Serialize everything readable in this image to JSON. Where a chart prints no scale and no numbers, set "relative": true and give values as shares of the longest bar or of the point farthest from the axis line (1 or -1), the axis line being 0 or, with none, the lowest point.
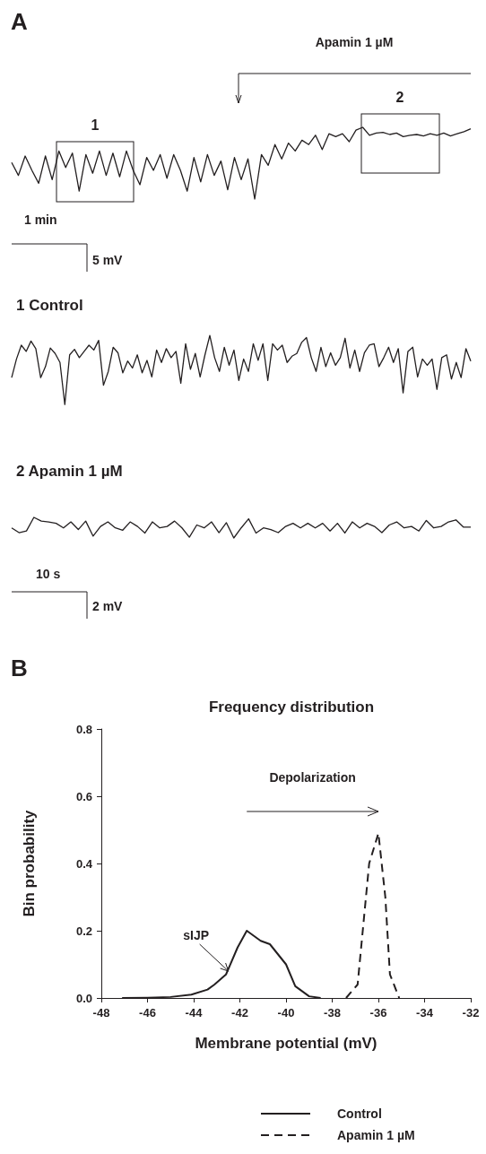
{
  "chart_data": [
    {
      "type": "line",
      "relative": true,
      "color": "#231f20",
      "annotations": [
        "A",
        "Apamin 1 µM",
        "1",
        "2",
        "1 min",
        "5 mV"
      ],
      "categories": [
        null,
        null,
        null,
        null,
        null,
        null,
        null,
        null,
        null,
        null,
        null,
        null,
        null,
        null,
        null,
        null,
        null,
        null,
        null,
        null,
        null,
        null,
        null,
        null,
        null,
        null,
        null,
        null,
        null,
        null,
        null,
        null,
        null,
        null,
        null,
        null,
        null,
        null,
        null,
        null,
        null,
        null,
        null,
        null,
        null,
        null,
        null,
        null,
        null,
        null,
        null,
        null,
        null,
        null,
        null,
        null,
        null,
        null,
        null,
        null,
        null,
        null,
        null,
        null,
        null,
        null,
        null,
        null,
        null
      ],
      "values": [
        0.51,
        0.33,
        0.6,
        0.4,
        0.22,
        0.6,
        0.27,
        0.67,
        0.44,
        0.64,
        0.11,
        0.62,
        0.36,
        0.67,
        0.33,
        0.64,
        0.31,
        0.67,
        0.4,
        0.2,
        0.58,
        0.4,
        0.62,
        0.29,
        0.62,
        0.4,
        0.11,
        0.58,
        0.24,
        0.62,
        0.33,
        0.53,
        0.13,
        0.58,
        0.27,
        0.56,
        0,
        0.62,
        0.47,
        0.76,
        0.56,
        0.78,
        0.67,
        0.82,
        0.76,
        0.89,
        0.69,
        0.91,
        0.87,
        0.91,
        0.8,
        0.96,
        1,
        0.89,
        0.92,
        0.93,
        0.9,
        0.92,
        0.87,
        0.89,
        0.9,
        0.88,
        0.91,
        0.89,
        0.92,
        0.88,
        0.91,
        0.94,
        0.98
      ]
    },
    {
      "type": "line",
      "relative": true,
      "color": "#231f20",
      "title": "1 Control",
      "categories": [
        null,
        null,
        null,
        null,
        null,
        null,
        null,
        null,
        null,
        null,
        null,
        null,
        null,
        null,
        null,
        null,
        null,
        null,
        null,
        null,
        null,
        null,
        null,
        null,
        null,
        null,
        null,
        null,
        null,
        null,
        null,
        null,
        null,
        null,
        null,
        null,
        null,
        null,
        null,
        null,
        null,
        null,
        null,
        null,
        null,
        null,
        null,
        null,
        null,
        null,
        null,
        null,
        null,
        null,
        null,
        null,
        null,
        null,
        null,
        null,
        null,
        null,
        null,
        null,
        null,
        null,
        null,
        null,
        null,
        null,
        null,
        null,
        null,
        null,
        null,
        null,
        null,
        null,
        null,
        null,
        null,
        null,
        null,
        null,
        null,
        null,
        null,
        null,
        null,
        null,
        null,
        null,
        null,
        null,
        null,
        null
      ],
      "values": [
        0.39,
        0.66,
        0.86,
        0.77,
        0.92,
        0.81,
        0.39,
        0.55,
        0.82,
        0.74,
        0.61,
        0,
        0.72,
        0.8,
        0.68,
        0.77,
        0.86,
        0.79,
        0.93,
        0.28,
        0.48,
        0.83,
        0.75,
        0.46,
        0.63,
        0.53,
        0.72,
        0.46,
        0.64,
        0.4,
        0.79,
        0.61,
        0.81,
        0.68,
        0.77,
        0.31,
        0.88,
        0.51,
        0.74,
        0.4,
        0.72,
        1,
        0.68,
        0.48,
        0.83,
        0.57,
        0.79,
        0.35,
        0.66,
        0.48,
        0.88,
        0.64,
        0.88,
        0.35,
        0.88,
        0.79,
        0.86,
        0.61,
        0.7,
        0.74,
        0.9,
        0.97,
        0.68,
        0.48,
        0.83,
        0.55,
        0.75,
        0.57,
        0.68,
        0.96,
        0.53,
        0.79,
        0.48,
        0.75,
        0.86,
        0.88,
        0.55,
        0.68,
        0.83,
        0.61,
        0.81,
        0.17,
        0.77,
        0.83,
        0.4,
        0.66,
        0.57,
        0.66,
        0.22,
        0.68,
        0.72,
        0.37,
        0.61,
        0.39,
        0.81,
        0.63
      ]
    },
    {
      "type": "line",
      "relative": true,
      "color": "#231f20",
      "title": "2 Apamin 1 µM",
      "annotations": [
        "10 s",
        "2 mV"
      ],
      "categories": [
        null,
        null,
        null,
        null,
        null,
        null,
        null,
        null,
        null,
        null,
        null,
        null,
        null,
        null,
        null,
        null,
        null,
        null,
        null,
        null,
        null,
        null,
        null,
        null,
        null,
        null,
        null,
        null,
        null,
        null,
        null,
        null,
        null,
        null,
        null,
        null,
        null,
        null,
        null,
        null,
        null,
        null,
        null,
        null,
        null,
        null,
        null,
        null,
        null,
        null,
        null,
        null,
        null,
        null,
        null,
        null,
        null,
        null,
        null,
        null,
        null,
        null,
        null
      ],
      "values": [
        0.49,
        0.26,
        0.34,
        1,
        0.82,
        0.78,
        0.71,
        0.49,
        0.78,
        0.41,
        0.82,
        0.09,
        0.56,
        0.78,
        0.49,
        0.38,
        0.78,
        0.56,
        0.24,
        0.78,
        0.49,
        0.56,
        0.82,
        0.49,
        0.04,
        0.63,
        0.49,
        0.78,
        0.26,
        0.74,
        0,
        0.49,
        0.93,
        0.24,
        0.49,
        0.41,
        0.26,
        0.56,
        0.71,
        0.49,
        0.71,
        0.49,
        0.71,
        0.34,
        0.71,
        0.24,
        0.78,
        0.49,
        0.71,
        0.56,
        0.26,
        0.63,
        0.78,
        0.49,
        0.56,
        0.34,
        0.85,
        0.49,
        0.56,
        0.78,
        0.88,
        0.53,
        0.53
      ]
    },
    {
      "type": "line",
      "title": "Frequency distribution",
      "xlabel": "Membrane potential (mV)",
      "ylabel": "Bin probability",
      "xlim": [
        -48,
        -32
      ],
      "xticks": [
        -48,
        -46,
        -44,
        -42,
        -40,
        -38,
        -36,
        -34,
        -32
      ],
      "ylim": [
        0,
        0.8
      ],
      "yticks": [
        {
          "value": 0,
          "label": "0.0"
        },
        0.2,
        0.4,
        0.6,
        0.8
      ],
      "legend": "bottom",
      "annotations": [
        "B",
        "Depolarization",
        {
          "text": "sIJP",
          "x": -42.5,
          "y": 0.08
        }
      ],
      "series": [
        {
          "name": "Control",
          "color": "#231f20",
          "line_style": "solid",
          "x": [
            -47.1,
            -46,
            -45,
            -44.1,
            -43.4,
            -43.1,
            -42.6,
            -42.1,
            -41.7,
            -41.1,
            -40.7,
            -40,
            -39.6,
            -39,
            -38.5
          ],
          "values": [
            0,
            0.001,
            0.003,
            0.01,
            0.025,
            0.04,
            0.07,
            0.15,
            0.2,
            0.17,
            0.16,
            0.1,
            0.035,
            0.005,
            0
          ]
        },
        {
          "name": "Apamin 1 µM",
          "color": "#231f20",
          "line_style": "dashed",
          "x": [
            -37.4,
            -36.9,
            -36.4,
            -36.0,
            -35.7,
            -35.5,
            -35.1
          ],
          "values": [
            0,
            0.04,
            0.4,
            0.49,
            0.3,
            0.07,
            0
          ]
        }
      ]
    }
  ]
}
